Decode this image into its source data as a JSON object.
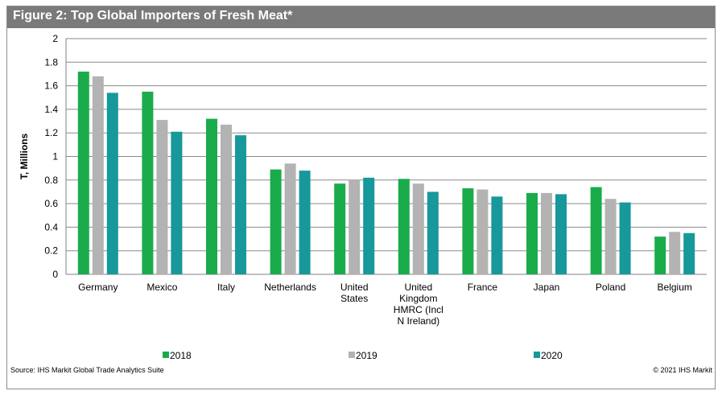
{
  "figure": {
    "title": "Figure 2: Top Global Importers of Fresh Meat*",
    "source": "Source: IHS Markit Global Trade Analytics Suite",
    "copyright": "© 2021 IHS Markit",
    "colors": {
      "title_bar": "#7a7a7a"
    }
  },
  "chart_data": {
    "type": "bar",
    "ylabel": "T, Millions",
    "xlabel": "",
    "ylim": [
      0,
      2
    ],
    "yticks": [
      "0",
      "0.2",
      "0.4",
      "0.6",
      "0.8",
      "1",
      "1.2",
      "1.4",
      "1.6",
      "1.8",
      "2"
    ],
    "grid": true,
    "legend_position": "bottom",
    "categories": [
      [
        "Germany"
      ],
      [
        "Mexico"
      ],
      [
        "Italy"
      ],
      [
        "Netherlands"
      ],
      [
        "United",
        "States"
      ],
      [
        "United",
        "Kingdom",
        "HMRC (Incl",
        "N Ireland)"
      ],
      [
        "France"
      ],
      [
        "Japan"
      ],
      [
        "Poland"
      ],
      [
        "Belgium"
      ]
    ],
    "series": [
      {
        "name": "2018",
        "color": "#1aab4b",
        "values": [
          1.72,
          1.55,
          1.32,
          0.89,
          0.77,
          0.81,
          0.73,
          0.69,
          0.74,
          0.32
        ]
      },
      {
        "name": "2019",
        "color": "#b3b3b3",
        "values": [
          1.68,
          1.31,
          1.27,
          0.94,
          0.8,
          0.77,
          0.72,
          0.69,
          0.64,
          0.36
        ]
      },
      {
        "name": "2020",
        "color": "#17989b",
        "values": [
          1.54,
          1.21,
          1.18,
          0.88,
          0.82,
          0.7,
          0.66,
          0.68,
          0.61,
          0.35
        ]
      }
    ]
  }
}
